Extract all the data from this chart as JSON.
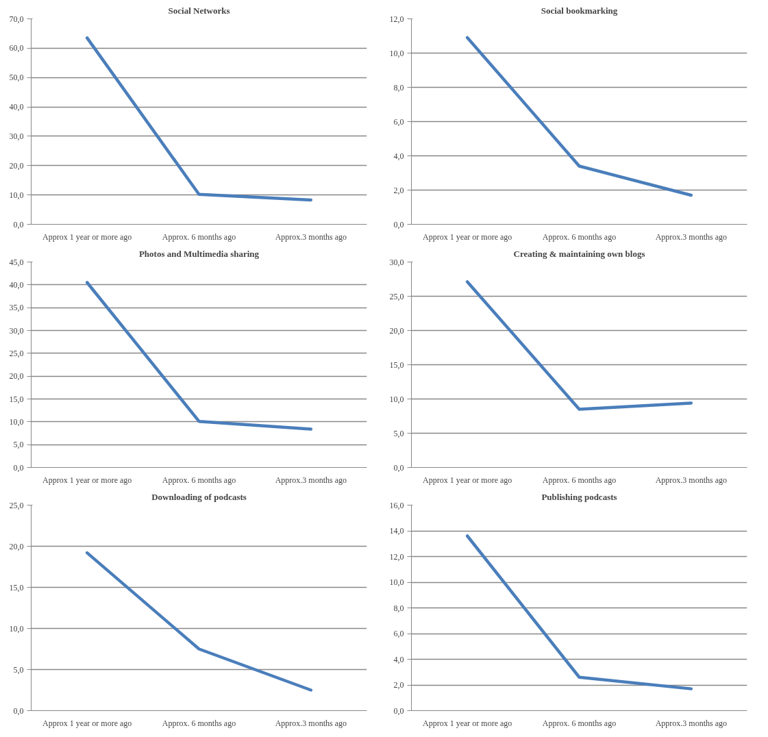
{
  "chart_data": [
    {
      "type": "line",
      "title": "Social Networks",
      "categories": [
        "Approx 1 year or more ago",
        "Approx. 6 months ago",
        "Approx.3 months ago"
      ],
      "series": [
        {
          "color": "#4a7ebb",
          "values": [
            63.5,
            10.2,
            8.3
          ]
        }
      ],
      "ylim": [
        0,
        70
      ],
      "yticks": [
        {
          "value": 0,
          "label": "0,0"
        },
        {
          "value": 10,
          "label": "10,0"
        },
        {
          "value": 20,
          "label": "20,0"
        },
        {
          "value": 30,
          "label": "30,0"
        },
        {
          "value": 40,
          "label": "40,0"
        },
        {
          "value": 50,
          "label": "50,0"
        },
        {
          "value": 60,
          "label": "60,0"
        },
        {
          "value": 70,
          "label": "70,0"
        }
      ],
      "grid": "y",
      "marker": "none",
      "line_style": "solid"
    },
    {
      "type": "line",
      "title": "Social bookmarking",
      "categories": [
        "Approx 1 year or more ago",
        "Approx. 6 months ago",
        "Approx.3 months ago"
      ],
      "series": [
        {
          "color": "#4a7ebb",
          "values": [
            10.9,
            3.4,
            1.7
          ]
        }
      ],
      "ylim": [
        0,
        12
      ],
      "yticks": [
        {
          "value": 0,
          "label": "0,0"
        },
        {
          "value": 2,
          "label": "2,0"
        },
        {
          "value": 4,
          "label": "4,0"
        },
        {
          "value": 6,
          "label": "6,0"
        },
        {
          "value": 8,
          "label": "8,0"
        },
        {
          "value": 10,
          "label": "10,0"
        },
        {
          "value": 12,
          "label": "12,0"
        }
      ],
      "grid": "y",
      "marker": "none",
      "line_style": "solid"
    },
    {
      "type": "line",
      "title": "Photos and Multimedia sharing",
      "categories": [
        "Approx 1 year or more ago",
        "Approx. 6 months ago",
        "Approx.3 months ago"
      ],
      "series": [
        {
          "color": "#4a7ebb",
          "values": [
            40.5,
            10.1,
            8.4
          ]
        }
      ],
      "ylim": [
        0,
        45
      ],
      "yticks": [
        {
          "value": 0,
          "label": "0,0"
        },
        {
          "value": 5,
          "label": "5,0"
        },
        {
          "value": 10,
          "label": "10,0"
        },
        {
          "value": 15,
          "label": "15,0"
        },
        {
          "value": 20,
          "label": "20,0"
        },
        {
          "value": 25,
          "label": "25,0"
        },
        {
          "value": 30,
          "label": "30,0"
        },
        {
          "value": 35,
          "label": "35,0"
        },
        {
          "value": 40,
          "label": "40,0"
        },
        {
          "value": 45,
          "label": "45,0"
        }
      ],
      "grid": "y",
      "marker": "none",
      "line_style": "solid"
    },
    {
      "type": "line",
      "title": "Creating & maintaining own blogs",
      "categories": [
        "Approx 1 year or more ago",
        "Approx. 6 months ago",
        "Approx.3 months ago"
      ],
      "series": [
        {
          "color": "#4a7ebb",
          "values": [
            27.1,
            8.5,
            9.4
          ]
        }
      ],
      "ylim": [
        0,
        30
      ],
      "yticks": [
        {
          "value": 0,
          "label": "0,0"
        },
        {
          "value": 5,
          "label": "5,0"
        },
        {
          "value": 10,
          "label": "10,0"
        },
        {
          "value": 15,
          "label": "15,0"
        },
        {
          "value": 20,
          "label": "20,0"
        },
        {
          "value": 25,
          "label": "25,0"
        },
        {
          "value": 30,
          "label": "30,0"
        }
      ],
      "grid": "y",
      "marker": "none",
      "line_style": "solid"
    },
    {
      "type": "line",
      "title": "Downloading of podcasts",
      "categories": [
        "Approx 1 year or more ago",
        "Approx. 6 months ago",
        "Approx.3 months ago"
      ],
      "series": [
        {
          "color": "#4a7ebb",
          "values": [
            19.2,
            7.5,
            2.5
          ]
        }
      ],
      "ylim": [
        0,
        25
      ],
      "yticks": [
        {
          "value": 0,
          "label": "0,0"
        },
        {
          "value": 5,
          "label": "5,0"
        },
        {
          "value": 10,
          "label": "10,0"
        },
        {
          "value": 15,
          "label": "15,0"
        },
        {
          "value": 20,
          "label": "20,0"
        },
        {
          "value": 25,
          "label": "25,0"
        }
      ],
      "grid": "y",
      "marker": "none",
      "line_style": "solid"
    },
    {
      "type": "line",
      "title": "Publishing podcasts",
      "categories": [
        "Approx 1 year or more ago",
        "Approx. 6 months ago",
        "Approx.3 months ago"
      ],
      "series": [
        {
          "color": "#4a7ebb",
          "values": [
            13.6,
            2.6,
            1.7
          ]
        }
      ],
      "ylim": [
        0,
        16
      ],
      "yticks": [
        {
          "value": 0,
          "label": "0,0"
        },
        {
          "value": 2,
          "label": "2,0"
        },
        {
          "value": 4,
          "label": "4,0"
        },
        {
          "value": 6,
          "label": "6,0"
        },
        {
          "value": 8,
          "label": "8,0"
        },
        {
          "value": 10,
          "label": "10,0"
        },
        {
          "value": 12,
          "label": "12,0"
        },
        {
          "value": 14,
          "label": "14,0"
        },
        {
          "value": 16,
          "label": "16,0"
        }
      ],
      "grid": "y",
      "marker": "none",
      "line_style": "solid"
    }
  ]
}
